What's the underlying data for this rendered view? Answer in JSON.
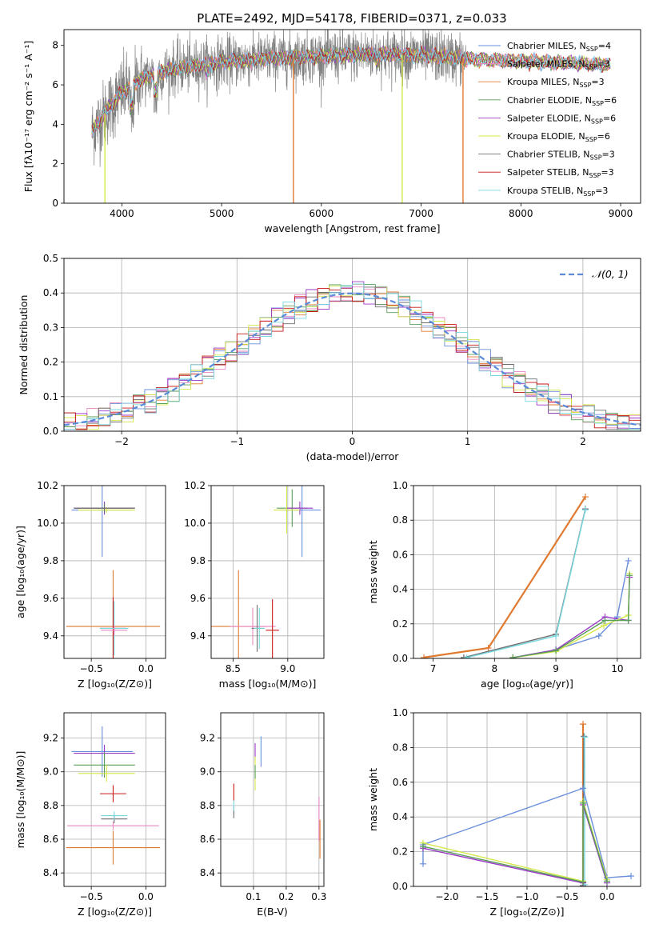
{
  "title": "PLATE=2492, MJD=54178, FIBERID=0371, z=0.033",
  "colors": {
    "c0": "#6a8fdc",
    "c1": "#e888c0",
    "c2": "#e07a30",
    "c3": "#5a9e5a",
    "c4": "#9b38c8",
    "c5": "#d4e848",
    "c6": "#6e6e6e",
    "c7": "#c81818",
    "c8": "#78d8e0",
    "data": "#808080",
    "grid": "#b0b0b0",
    "gauss": "#5a8ad8"
  },
  "chart_data": [
    {
      "id": "spectrum",
      "type": "line",
      "xlabel": "wavelength [Angstrom, rest frame]",
      "ylabel": "Flux [fλ10⁻¹⁷ erg cm⁻² s⁻¹ A⁻¹]",
      "xlim": [
        3420,
        9200
      ],
      "ylim": [
        0,
        8.8
      ],
      "xticks": [
        4000,
        5000,
        6000,
        7000,
        8000,
        9000
      ],
      "yticks": [
        0,
        2,
        4,
        6,
        8
      ],
      "grid": false,
      "legend": "upper-right",
      "legend_entries": [
        {
          "label": "Chabrier MILES, N",
          "sub": "SSP",
          "suffix": "=4",
          "color": "c0"
        },
        {
          "label": "Salpeter MILES, N",
          "sub": "SSP",
          "suffix": "=3",
          "color": "c1"
        },
        {
          "label": "Kroupa MILES, N",
          "sub": "SSP",
          "suffix": "=3",
          "color": "c2"
        },
        {
          "label": "Chabrier ELODIE, N",
          "sub": "SSP",
          "suffix": "=6",
          "color": "c3"
        },
        {
          "label": "Salpeter ELODIE, N",
          "sub": "SSP",
          "suffix": "=6",
          "color": "c4"
        },
        {
          "label": "Kroupa ELODIE, N",
          "sub": "SSP",
          "suffix": "=6",
          "color": "c5"
        },
        {
          "label": "Chabrier STELIB, N",
          "sub": "SSP",
          "suffix": "=3",
          "color": "c6"
        },
        {
          "label": "Salpeter STELIB, N",
          "sub": "SSP",
          "suffix": "=3",
          "color": "c7"
        },
        {
          "label": "Kroupa STELIB, N",
          "sub": "SSP",
          "suffix": "=3",
          "color": "c8"
        }
      ],
      "data_range": [
        3700,
        7450
      ],
      "model_range": [
        3700,
        8900
      ],
      "continuum": [
        [
          3700,
          3.6
        ],
        [
          3850,
          4.7
        ],
        [
          4000,
          5.6
        ],
        [
          4200,
          6.3
        ],
        [
          4500,
          6.8
        ],
        [
          5000,
          7.15
        ],
        [
          5500,
          7.35
        ],
        [
          6000,
          7.45
        ],
        [
          6500,
          7.55
        ],
        [
          7000,
          7.5
        ],
        [
          7500,
          7.3
        ],
        [
          8000,
          7.2
        ],
        [
          8500,
          7.1
        ],
        [
          8900,
          7.0
        ]
      ],
      "drops": [
        [
          5720,
          "c2"
        ],
        [
          7420,
          "c2"
        ],
        [
          6810,
          "c5"
        ],
        [
          3830,
          "c5"
        ]
      ]
    },
    {
      "id": "residuals",
      "type": "histogram",
      "xlabel": "(data-model)/error",
      "ylabel": "Normed distribution",
      "xlim": [
        -2.5,
        2.5
      ],
      "ylim": [
        0,
        0.5
      ],
      "xticks": [
        -2,
        -1,
        0,
        1,
        2
      ],
      "yticks": [
        0.0,
        0.1,
        0.2,
        0.3,
        0.4,
        0.5
      ],
      "bin_width": 0.1,
      "grid": true,
      "legend": "upper-right",
      "legend_entries": [
        {
          "label": "𝒩(0, 1)",
          "color": "gauss"
        }
      ],
      "series_colors": [
        "c0",
        "c1",
        "c2",
        "c3",
        "c4",
        "c5",
        "c6",
        "c7",
        "c8"
      ]
    },
    {
      "id": "age_vs_Z",
      "type": "errorbar",
      "xlabel": "Z [log₁₀(Z/Z⊙)]",
      "ylabel": "age  [log₁₀(age/yr)]",
      "xlim": [
        -0.75,
        0.18
      ],
      "ylim": [
        9.28,
        10.2
      ],
      "xticks": [
        -0.5,
        0.0
      ],
      "yticks": [
        9.4,
        9.6,
        9.8,
        10.0,
        10.2
      ],
      "grid": true,
      "points": [
        {
          "c": "c0",
          "x": -0.4,
          "y": 10.07,
          "xe": 0.28,
          "ye": 0.5
        },
        {
          "c": "c3",
          "x": -0.38,
          "y": 10.08,
          "xe": 0.28,
          "ye": 0.06
        },
        {
          "c": "c4",
          "x": -0.38,
          "y": 10.08,
          "xe": 0.27,
          "ye": 0.07
        },
        {
          "c": "c5",
          "x": -0.36,
          "y": 10.07,
          "xe": 0.26,
          "ye": 0.03
        },
        {
          "c": "c6",
          "x": -0.38,
          "y": 10.08,
          "xe": 0.28,
          "ye": 0.05
        },
        {
          "c": "c2",
          "x": -0.3,
          "y": 9.45,
          "xe": 0.43,
          "ye": 0.6
        },
        {
          "c": "c7",
          "x": -0.3,
          "y": 9.44,
          "xe": 0.12,
          "ye": 0.33
        },
        {
          "c": "c8",
          "x": -0.29,
          "y": 9.44,
          "xe": 0.13,
          "ye": 0.29
        },
        {
          "c": "c1",
          "x": -0.29,
          "y": 9.43,
          "xe": 0.12,
          "ye": 0.05
        }
      ]
    },
    {
      "id": "age_vs_mass",
      "type": "errorbar",
      "xlabel": "mass [log₁₀(M/M⊙)]",
      "ylabel": "",
      "xlim": [
        8.3,
        9.33
      ],
      "ylim": [
        9.28,
        10.2
      ],
      "xticks": [
        8.5,
        9.0
      ],
      "yticks": [
        9.4,
        9.6,
        9.8,
        10.0,
        10.2
      ],
      "grid": true,
      "points": [
        {
          "c": "c0",
          "x": 9.13,
          "y": 10.07,
          "xe": 0.17,
          "ye": 0.5
        },
        {
          "c": "c3",
          "x": 9.04,
          "y": 10.08,
          "xe": 0.14,
          "ye": 0.2
        },
        {
          "c": "c4",
          "x": 9.11,
          "y": 10.08,
          "xe": 0.12,
          "ye": 0.07
        },
        {
          "c": "c5",
          "x": 8.99,
          "y": 10.07,
          "xe": 0.12,
          "ye": 0.25
        },
        {
          "c": "c2",
          "x": 8.55,
          "y": 9.45,
          "xe": 0.25,
          "ye": 0.6
        },
        {
          "c": "c1",
          "x": 8.68,
          "y": 9.45,
          "xe": 0.21,
          "ye": 0.2
        },
        {
          "c": "c7",
          "x": 8.86,
          "y": 9.43,
          "xe": 0.06,
          "ye": 0.33
        },
        {
          "c": "c6",
          "x": 8.72,
          "y": 9.44,
          "xe": 0.05,
          "ye": 0.25
        },
        {
          "c": "c8",
          "x": 8.74,
          "y": 9.44,
          "xe": 0.05,
          "ye": 0.22
        }
      ]
    },
    {
      "id": "weight_vs_age",
      "type": "line",
      "xlabel": "age  [log₁₀(age/yr)]",
      "ylabel": "mass weight",
      "xlim": [
        6.68,
        10.38
      ],
      "ylim": [
        0,
        1.0
      ],
      "xticks": [
        7,
        8,
        9,
        10
      ],
      "yticks": [
        0.0,
        0.2,
        0.4,
        0.6,
        0.8,
        1.0
      ],
      "grid": true,
      "series": [
        {
          "c": "c2",
          "w": 2.2,
          "pts": [
            [
              6.85,
              0.005
            ],
            [
              7.9,
              0.06
            ],
            [
              9.48,
              0.935
            ]
          ]
        },
        {
          "c": "c6",
          "w": 1.4,
          "pts": [
            [
              7.5,
              0.005
            ],
            [
              9.0,
              0.14
            ],
            [
              9.48,
              0.865
            ]
          ]
        },
        {
          "c": "c8",
          "w": 1.4,
          "pts": [
            [
              7.55,
              0.005
            ],
            [
              9.0,
              0.13
            ],
            [
              9.48,
              0.86
            ]
          ]
        },
        {
          "c": "c0",
          "w": 1.4,
          "pts": [
            [
              9.0,
              0.05
            ],
            [
              9.7,
              0.13
            ],
            [
              10.0,
              0.24
            ],
            [
              10.18,
              0.565
            ]
          ]
        },
        {
          "c": "c4",
          "w": 1.4,
          "pts": [
            [
              8.3,
              0.005
            ],
            [
              9.0,
              0.05
            ],
            [
              9.8,
              0.24
            ],
            [
              10.18,
              0.22
            ],
            [
              10.2,
              0.47
            ]
          ]
        },
        {
          "c": "c5",
          "w": 1.4,
          "pts": [
            [
              8.3,
              0.005
            ],
            [
              9.0,
              0.04
            ],
            [
              9.78,
              0.19
            ],
            [
              10.18,
              0.25
            ],
            [
              10.2,
              0.49
            ]
          ]
        },
        {
          "c": "c3",
          "w": 1.4,
          "pts": [
            [
              8.3,
              0.005
            ],
            [
              9.0,
              0.045
            ],
            [
              9.8,
              0.22
            ],
            [
              10.18,
              0.22
            ],
            [
              10.2,
              0.48
            ]
          ]
        }
      ]
    },
    {
      "id": "mass_vs_Z",
      "type": "errorbar",
      "xlabel": "Z [log₁₀(Z/Z⊙)]",
      "ylabel": "mass [log₁₀(M/M⊙)]",
      "xlim": [
        -0.75,
        0.18
      ],
      "ylim": [
        8.32,
        9.35
      ],
      "xticks": [
        -0.5,
        0.0
      ],
      "yticks": [
        8.4,
        8.6,
        8.8,
        9.0,
        9.2
      ],
      "grid": true,
      "points": [
        {
          "c": "c0",
          "x": -0.4,
          "y": 9.12,
          "xe": 0.28,
          "ye": 0.3
        },
        {
          "c": "c4",
          "x": -0.38,
          "y": 9.11,
          "xe": 0.28,
          "ye": 0.1
        },
        {
          "c": "c3",
          "x": -0.38,
          "y": 9.04,
          "xe": 0.28,
          "ye": 0.15
        },
        {
          "c": "c5",
          "x": -0.36,
          "y": 8.99,
          "xe": 0.26,
          "ye": 0.1
        },
        {
          "c": "c2",
          "x": -0.3,
          "y": 8.55,
          "xe": 0.43,
          "ye": 0.2
        },
        {
          "c": "c1",
          "x": -0.3,
          "y": 8.68,
          "xe": 0.42,
          "ye": 0.05
        },
        {
          "c": "c7",
          "x": -0.3,
          "y": 8.87,
          "xe": 0.12,
          "ye": 0.1
        },
        {
          "c": "c6",
          "x": -0.29,
          "y": 8.72,
          "xe": 0.12,
          "ye": 0.05
        },
        {
          "c": "c8",
          "x": -0.29,
          "y": 8.74,
          "xe": 0.12,
          "ye": 0.05
        }
      ]
    },
    {
      "id": "mass_vs_ebv",
      "type": "errorbar",
      "xlabel": "E(B-V)",
      "ylabel": "",
      "xlim": [
        0.0,
        0.315
      ],
      "ylim": [
        8.32,
        9.35
      ],
      "xticks": [
        0.1,
        0.2,
        0.3
      ],
      "yticks": [
        8.4,
        8.6,
        8.8,
        9.0,
        9.2
      ],
      "grid": true,
      "points": [
        {
          "c": "c0",
          "x": 0.123,
          "y": 9.12,
          "xe": 0,
          "ye": 0.18
        },
        {
          "c": "c4",
          "x": 0.105,
          "y": 9.12,
          "xe": 0,
          "ye": 0.1
        },
        {
          "c": "c5",
          "x": 0.105,
          "y": 8.99,
          "xe": 0,
          "ye": 0.2
        },
        {
          "c": "c3",
          "x": 0.105,
          "y": 9.0,
          "xe": 0,
          "ye": 0.08
        },
        {
          "c": "c7",
          "x": 0.04,
          "y": 8.88,
          "xe": 0,
          "ye": 0.1
        },
        {
          "c": "c6",
          "x": 0.04,
          "y": 8.76,
          "xe": 0,
          "ye": 0.07
        },
        {
          "c": "c8",
          "x": 0.04,
          "y": 8.8,
          "xe": 0,
          "ye": 0.06
        },
        {
          "c": "c2",
          "x": 0.303,
          "y": 8.6,
          "xe": 0,
          "ye": 0.23
        },
        {
          "c": "c1",
          "x": 0.3,
          "y": 8.72,
          "xe": 0,
          "ye": 0.26
        }
      ]
    },
    {
      "id": "weight_vs_Z",
      "type": "line",
      "xlabel": "Z [log₁₀(Z/Z⊙)]",
      "ylabel": "mass weight",
      "xlim": [
        -2.42,
        0.42
      ],
      "ylim": [
        0,
        1.0
      ],
      "xticks": [
        -2.0,
        -1.5,
        -1.0,
        -0.5,
        0.0
      ],
      "yticks": [
        0.0,
        0.2,
        0.4,
        0.6,
        0.8,
        1.0
      ],
      "grid": true,
      "series": [
        {
          "c": "c2",
          "w": 2.2,
          "pts": [
            [
              -0.3,
              0.005
            ],
            [
              -0.3,
              0.935
            ]
          ]
        },
        {
          "c": "c6",
          "w": 1.4,
          "pts": [
            [
              -0.3,
              0.005
            ],
            [
              -0.29,
              0.865
            ]
          ]
        },
        {
          "c": "c8",
          "w": 1.4,
          "pts": [
            [
              -0.28,
              0.01
            ],
            [
              -0.28,
              0.86
            ]
          ]
        },
        {
          "c": "c0",
          "w": 1.4,
          "pts": [
            [
              -2.3,
              0.13
            ],
            [
              -2.3,
              0.24
            ],
            [
              -0.3,
              0.565
            ],
            [
              0.0,
              0.05
            ],
            [
              0.3,
              0.06
            ]
          ]
        },
        {
          "c": "c4",
          "w": 1.4,
          "pts": [
            [
              -2.3,
              0.22
            ],
            [
              -0.3,
              0.02
            ],
            [
              -0.3,
              0.47
            ],
            [
              0.0,
              0.02
            ]
          ]
        },
        {
          "c": "c5",
          "w": 1.4,
          "pts": [
            [
              -2.3,
              0.25
            ],
            [
              -0.3,
              0.03
            ],
            [
              -0.3,
              0.49
            ],
            [
              0.0,
              0.04
            ]
          ]
        },
        {
          "c": "c3",
          "w": 1.4,
          "pts": [
            [
              -2.3,
              0.23
            ],
            [
              -0.3,
              0.025
            ],
            [
              -0.3,
              0.48
            ],
            [
              0.0,
              0.03
            ]
          ]
        }
      ]
    }
  ]
}
